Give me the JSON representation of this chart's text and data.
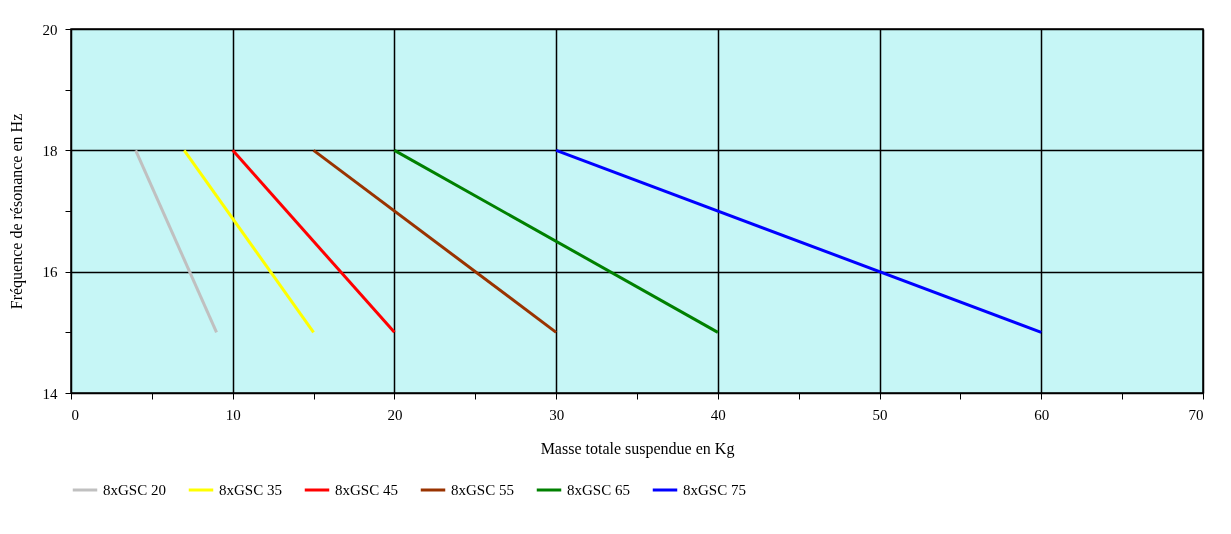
{
  "chart_data": {
    "type": "line",
    "xlabel": "Masse totale suspendue en Kg",
    "ylabel": "Fréquence de résonance en Hz",
    "xlim": [
      0,
      70
    ],
    "xticks": [
      0,
      {
        "value": 5,
        "label": null
      },
      10,
      {
        "value": 15,
        "label": null
      },
      20,
      {
        "value": 25,
        "label": null
      },
      30,
      {
        "value": 35,
        "label": null
      },
      40,
      {
        "value": 45,
        "label": null
      },
      50,
      {
        "value": 55,
        "label": null
      },
      60,
      {
        "value": 65,
        "label": null
      },
      70
    ],
    "ylim": [
      14,
      20
    ],
    "yticks": [
      14,
      {
        "value": 15,
        "label": null
      },
      16,
      {
        "value": 17,
        "label": null
      },
      18,
      {
        "value": 19,
        "label": null
      },
      20
    ],
    "grid": true,
    "legend": "bottom",
    "marker": "none",
    "line_style": "solid",
    "series": [
      {
        "name": "8xGSC 20",
        "color": "#c0c0c0",
        "x": [
          4,
          9
        ],
        "values": [
          18,
          15
        ]
      },
      {
        "name": "8xGSC 35",
        "color": "#ffff00",
        "x": [
          7,
          15
        ],
        "values": [
          18,
          15
        ]
      },
      {
        "name": "8xGSC 45",
        "color": "#ff0000",
        "x": [
          10,
          20
        ],
        "values": [
          18,
          15
        ]
      },
      {
        "name": "8xGSC 55",
        "color": "#993300",
        "x": [
          15,
          30
        ],
        "values": [
          18,
          15
        ]
      },
      {
        "name": "8xGSC 65",
        "color": "#008000",
        "x": [
          20,
          40
        ],
        "values": [
          18,
          15
        ]
      },
      {
        "name": "8xGSC 75",
        "color": "#0000ff",
        "x": [
          30,
          60
        ],
        "values": [
          18,
          15
        ]
      }
    ]
  }
}
